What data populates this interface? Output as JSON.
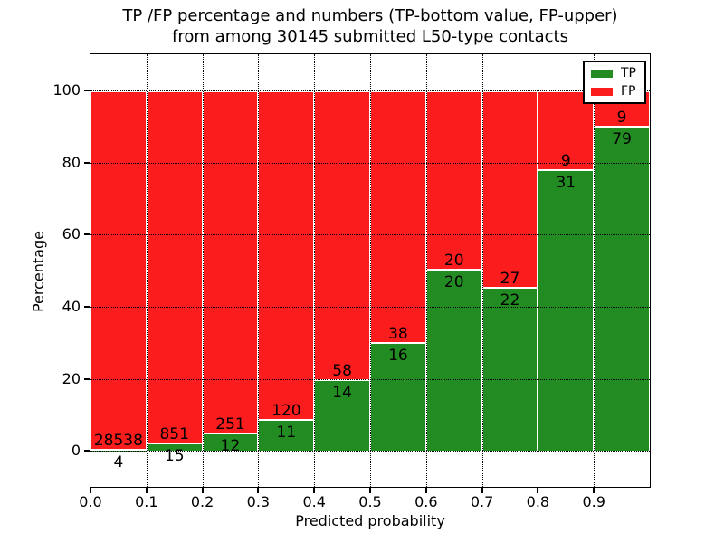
{
  "title": {
    "line1": "TP /FP percentage and numbers (TP-bottom value, FP-upper)",
    "line2": "from among 30145 submitted L50-type contacts"
  },
  "legend": {
    "items": [
      {
        "label": "TP",
        "color": "#228b22"
      },
      {
        "label": "FP",
        "color": "#fb1d1d"
      }
    ]
  },
  "chart_data": {
    "type": "bar",
    "stacked": true,
    "title": "TP /FP percentage and numbers (TP-bottom value, FP-upper) from among 30145 submitted L50-type contacts",
    "xlabel": "Predicted probability",
    "ylabel": "Percentage",
    "total_contacts": 30145,
    "bin_width": 0.1,
    "bin_starts": [
      0.0,
      0.1,
      0.2,
      0.3,
      0.4,
      0.5,
      0.6,
      0.7,
      0.8,
      0.9
    ],
    "xlim": [
      0.0,
      1.0
    ],
    "ylim": [
      -10,
      110
    ],
    "xtick_labels": [
      "0.0",
      "0.1",
      "0.2",
      "0.3",
      "0.4",
      "0.5",
      "0.6",
      "0.7",
      "0.8",
      "0.9"
    ],
    "ytick_values": [
      0,
      20,
      40,
      60,
      80,
      100
    ],
    "ytick_labels": [
      "0",
      "20",
      "40",
      "60",
      "80",
      "100"
    ],
    "grid": true,
    "grid_style": "dotted",
    "legend_position": "upper right",
    "series": [
      {
        "name": "TP",
        "color": "#228b22",
        "counts": [
          4,
          15,
          12,
          11,
          14,
          16,
          20,
          22,
          31,
          79
        ],
        "pct": [
          0.01,
          1.73,
          4.56,
          8.4,
          19.44,
          29.63,
          50.0,
          44.9,
          77.5,
          89.77
        ]
      },
      {
        "name": "FP",
        "color": "#fb1d1d",
        "counts": [
          28538,
          851,
          251,
          120,
          58,
          38,
          20,
          27,
          9,
          9
        ],
        "pct": [
          99.99,
          98.27,
          95.44,
          91.6,
          80.56,
          70.37,
          50.0,
          55.1,
          22.5,
          10.23
        ]
      }
    ],
    "annotation_note": "TP count printed below each green/red boundary, FP count above it"
  }
}
